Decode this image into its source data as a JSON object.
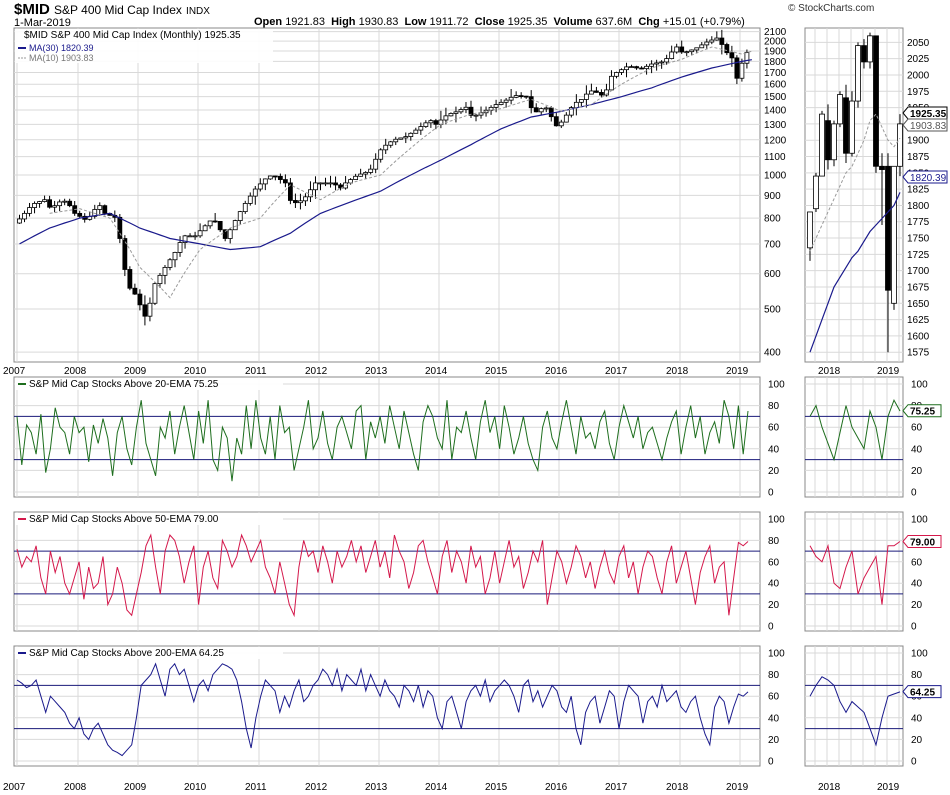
{
  "header": {
    "symbol": "$MID",
    "name": "S&P 400 Mid Cap Index",
    "exchange": "INDX",
    "date": "1-Mar-2019",
    "open_label": "Open",
    "open": "1921.83",
    "high_label": "High",
    "high": "1930.83",
    "low_label": "Low",
    "low": "1911.72",
    "close_label": "Close",
    "close": "1925.35",
    "volume_label": "Volume",
    "volume": "637.6M",
    "chg_label": "Chg",
    "chg": "+15.01 (+0.79%)",
    "brand": "© StockCharts.com"
  },
  "colors": {
    "ma30": "#1a1a8c",
    "ma10": "#9a9a9a",
    "pct20": "#1e6e1e",
    "pct50": "#d4184b",
    "pct200": "#1a1a8c",
    "hline": "#1a1a7a",
    "grid": "#d9d9d9"
  },
  "chart_data": [
    {
      "type": "candlestick",
      "legend": [
        {
          "label": "$MID S&P 400 Mid Cap Index (Monthly) 1925.35"
        },
        {
          "label": "MA(30) 1820.39"
        },
        {
          "label": "MA(10) 1903.83"
        }
      ],
      "scale": "log",
      "y_ticks": [
        400,
        500,
        600,
        700,
        800,
        900,
        1000,
        1100,
        1200,
        1300,
        1400,
        1500,
        1600,
        1700,
        1800,
        1900,
        2000,
        2100
      ],
      "x_ticks": [
        "2007",
        "2008",
        "2009",
        "2010",
        "2011",
        "2012",
        "2013",
        "2014",
        "2015",
        "2016",
        "2017",
        "2018",
        "2019"
      ],
      "price_anchors": [
        [
          2007.0,
          780
        ],
        [
          2007.1,
          800
        ],
        [
          2007.3,
          860
        ],
        [
          2007.5,
          880
        ],
        [
          2007.6,
          840
        ],
        [
          2007.8,
          880
        ],
        [
          2007.9,
          860
        ],
        [
          2008.0,
          820
        ],
        [
          2008.2,
          790
        ],
        [
          2008.4,
          860
        ],
        [
          2008.5,
          820
        ],
        [
          2008.7,
          800
        ],
        [
          2008.8,
          640
        ],
        [
          2008.9,
          560
        ],
        [
          2009.0,
          540
        ],
        [
          2009.2,
          470
        ],
        [
          2009.3,
          560
        ],
        [
          2009.5,
          620
        ],
        [
          2009.7,
          680
        ],
        [
          2009.8,
          730
        ],
        [
          2010.0,
          730
        ],
        [
          2010.3,
          800
        ],
        [
          2010.4,
          760
        ],
        [
          2010.5,
          720
        ],
        [
          2010.6,
          760
        ],
        [
          2010.8,
          850
        ],
        [
          2011.0,
          930
        ],
        [
          2011.2,
          990
        ],
        [
          2011.3,
          1000
        ],
        [
          2011.5,
          960
        ],
        [
          2011.6,
          860
        ],
        [
          2011.8,
          880
        ],
        [
          2012.0,
          960
        ],
        [
          2012.3,
          960
        ],
        [
          2012.4,
          930
        ],
        [
          2012.5,
          960
        ],
        [
          2012.7,
          1000
        ],
        [
          2012.9,
          1020
        ],
        [
          2013.1,
          1150
        ],
        [
          2013.3,
          1200
        ],
        [
          2013.5,
          1220
        ],
        [
          2013.7,
          1270
        ],
        [
          2013.9,
          1330
        ],
        [
          2014.0,
          1300
        ],
        [
          2014.2,
          1370
        ],
        [
          2014.3,
          1380
        ],
        [
          2014.5,
          1420
        ],
        [
          2014.6,
          1350
        ],
        [
          2014.8,
          1390
        ],
        [
          2015.0,
          1440
        ],
        [
          2015.2,
          1480
        ],
        [
          2015.3,
          1510
        ],
        [
          2015.5,
          1500
        ],
        [
          2015.6,
          1400
        ],
        [
          2015.7,
          1380
        ],
        [
          2015.8,
          1440
        ],
        [
          2016.0,
          1290
        ],
        [
          2016.1,
          1320
        ],
        [
          2016.3,
          1450
        ],
        [
          2016.4,
          1470
        ],
        [
          2016.5,
          1520
        ],
        [
          2016.6,
          1550
        ],
        [
          2016.8,
          1500
        ],
        [
          2016.9,
          1660
        ],
        [
          2017.0,
          1700
        ],
        [
          2017.2,
          1760
        ],
        [
          2017.4,
          1730
        ],
        [
          2017.6,
          1780
        ],
        [
          2017.8,
          1800
        ],
        [
          2017.9,
          1880
        ],
        [
          2018.0,
          1940
        ],
        [
          2018.1,
          1880
        ],
        [
          2018.3,
          1920
        ],
        [
          2018.5,
          1990
        ],
        [
          2018.7,
          2040
        ],
        [
          2018.8,
          1890
        ],
        [
          2018.9,
          1870
        ],
        [
          2019.0,
          1650
        ],
        [
          2019.1,
          1810
        ],
        [
          2019.2,
          1925
        ]
      ],
      "ma30_anchors": [
        [
          2007.0,
          700
        ],
        [
          2007.5,
          760
        ],
        [
          2008.0,
          800
        ],
        [
          2008.5,
          820
        ],
        [
          2009.0,
          760
        ],
        [
          2009.5,
          720
        ],
        [
          2010.0,
          700
        ],
        [
          2010.5,
          680
        ],
        [
          2011.0,
          690
        ],
        [
          2011.5,
          740
        ],
        [
          2012.0,
          820
        ],
        [
          2012.5,
          870
        ],
        [
          2013.0,
          920
        ],
        [
          2013.5,
          1000
        ],
        [
          2014.0,
          1080
        ],
        [
          2014.5,
          1170
        ],
        [
          2015.0,
          1270
        ],
        [
          2015.5,
          1350
        ],
        [
          2016.0,
          1390
        ],
        [
          2016.5,
          1440
        ],
        [
          2017.0,
          1500
        ],
        [
          2017.5,
          1570
        ],
        [
          2018.0,
          1660
        ],
        [
          2018.5,
          1740
        ],
        [
          2019.0,
          1800
        ],
        [
          2019.2,
          1820
        ]
      ],
      "ma10_anchors": [
        [
          2007.5,
          820
        ],
        [
          2008.0,
          840
        ],
        [
          2008.5,
          800
        ],
        [
          2009.0,
          620
        ],
        [
          2009.5,
          530
        ],
        [
          2010.0,
          680
        ],
        [
          2010.5,
          760
        ],
        [
          2011.0,
          800
        ],
        [
          2011.5,
          950
        ],
        [
          2012.0,
          880
        ],
        [
          2012.5,
          960
        ],
        [
          2013.0,
          1000
        ],
        [
          2013.5,
          1150
        ],
        [
          2014.0,
          1300
        ],
        [
          2014.5,
          1370
        ],
        [
          2015.0,
          1410
        ],
        [
          2015.5,
          1480
        ],
        [
          2016.0,
          1390
        ],
        [
          2016.5,
          1440
        ],
        [
          2017.0,
          1600
        ],
        [
          2017.5,
          1740
        ],
        [
          2018.0,
          1820
        ],
        [
          2018.5,
          1940
        ],
        [
          2019.0,
          1870
        ],
        [
          2019.2,
          1903
        ]
      ]
    },
    {
      "type": "candlestick",
      "zoom": true,
      "y_ticks": [
        1575,
        1600,
        1625,
        1650,
        1675,
        1700,
        1725,
        1750,
        1775,
        1800,
        1825,
        1850,
        1875,
        1900,
        1925,
        1950,
        1975,
        2000,
        2025,
        2050
      ],
      "x_ticks": [
        "2018",
        "2019"
      ],
      "price_labels": [
        "1925.35",
        "1903.83",
        "1820.39"
      ],
      "candles": [
        {
          "o": 1735,
          "h": 1790,
          "l": 1715,
          "c": 1790
        },
        {
          "o": 1795,
          "h": 1850,
          "l": 1790,
          "c": 1845
        },
        {
          "o": 1845,
          "h": 1945,
          "l": 1845,
          "c": 1940
        },
        {
          "o": 1930,
          "h": 1955,
          "l": 1855,
          "c": 1870
        },
        {
          "o": 1870,
          "h": 1930,
          "l": 1860,
          "c": 1925
        },
        {
          "o": 1925,
          "h": 1975,
          "l": 1920,
          "c": 1970
        },
        {
          "o": 1965,
          "h": 1985,
          "l": 1865,
          "c": 1880
        },
        {
          "o": 1880,
          "h": 1975,
          "l": 1875,
          "c": 1960
        },
        {
          "o": 1960,
          "h": 2050,
          "l": 1950,
          "c": 2045
        },
        {
          "o": 2045,
          "h": 2055,
          "l": 2010,
          "c": 2020
        },
        {
          "o": 2020,
          "h": 2065,
          "l": 2010,
          "c": 2060
        },
        {
          "o": 2060,
          "h": 2060,
          "l": 1850,
          "c": 1860
        },
        {
          "o": 1860,
          "h": 1880,
          "l": 1770,
          "c": 1855
        },
        {
          "o": 1860,
          "h": 1880,
          "l": 1575,
          "c": 1670
        },
        {
          "o": 1650,
          "h": 1860,
          "l": 1640,
          "c": 1860
        },
        {
          "o": 1860,
          "h": 1940,
          "l": 1845,
          "c": 1925
        }
      ],
      "ma10": [
        1730,
        1750,
        1770,
        1790,
        1810,
        1830,
        1850,
        1860,
        1880,
        1900,
        1930,
        1940,
        1920,
        1900,
        1890,
        1903
      ],
      "ma30": [
        1575,
        1600,
        1625,
        1650,
        1675,
        1690,
        1705,
        1720,
        1730,
        1745,
        1760,
        1770,
        1780,
        1790,
        1800,
        1820
      ]
    },
    {
      "type": "line",
      "title": "S&P Mid Cap Stocks Above 20-EMA 75.25",
      "value_label": "75.25",
      "ylim": [
        0,
        100
      ],
      "y_ticks": [
        0,
        20,
        40,
        60,
        80,
        100
      ],
      "hlines": [
        30,
        70
      ],
      "x_ticks": [
        "2007",
        "2008",
        "2009",
        "2010",
        "2011",
        "2012",
        "2013",
        "2014",
        "2015",
        "2016",
        "2017",
        "2018",
        "2019"
      ],
      "values": [
        70,
        25,
        62,
        55,
        35,
        72,
        18,
        40,
        78,
        60,
        55,
        35,
        70,
        55,
        60,
        28,
        62,
        45,
        68,
        50,
        15,
        55,
        70,
        40,
        25,
        60,
        85,
        45,
        30,
        15,
        60,
        50,
        75,
        35,
        60,
        80,
        55,
        30,
        75,
        45,
        85,
        30,
        20,
        60,
        50,
        10,
        50,
        35,
        80,
        40,
        85,
        50,
        35,
        70,
        30,
        80,
        55,
        60,
        20,
        40,
        60,
        85,
        40,
        50,
        75,
        45,
        30,
        60,
        70,
        55,
        40,
        75,
        80,
        30,
        65,
        50,
        70,
        45,
        80,
        60,
        40,
        75,
        55,
        35,
        20,
        65,
        80,
        70,
        50,
        40,
        85,
        30,
        60,
        55,
        75,
        50,
        30,
        65,
        85,
        55,
        70,
        40,
        80,
        60,
        35,
        50,
        70,
        45,
        30,
        20,
        60,
        75,
        50,
        40,
        65,
        85,
        60,
        35,
        70,
        50,
        55,
        40,
        65,
        75,
        45,
        30,
        60,
        80,
        65,
        50,
        70,
        40,
        55,
        60,
        45,
        30,
        50,
        65,
        75,
        35,
        60,
        80,
        50,
        70,
        35,
        55,
        65,
        45,
        85,
        70,
        40,
        80,
        35,
        75
      ],
      "zoom_values": [
        70,
        80,
        60,
        45,
        30,
        55,
        80,
        60,
        50,
        40,
        75,
        60,
        30,
        70,
        85,
        75
      ]
    },
    {
      "type": "line",
      "title": "S&P Mid Cap Stocks Above 50-EMA 79.00",
      "value_label": "79.00",
      "ylim": [
        0,
        100
      ],
      "y_ticks": [
        0,
        20,
        40,
        60,
        80,
        100
      ],
      "hlines": [
        30,
        70
      ],
      "x_ticks": [
        "2007",
        "2008",
        "2009",
        "2010",
        "2011",
        "2012",
        "2013",
        "2014",
        "2015",
        "2016",
        "2017",
        "2018",
        "2019"
      ],
      "values": [
        72,
        55,
        65,
        60,
        75,
        45,
        30,
        70,
        50,
        65,
        40,
        30,
        45,
        60,
        25,
        55,
        35,
        40,
        65,
        20,
        30,
        55,
        40,
        15,
        10,
        30,
        50,
        75,
        85,
        55,
        30,
        70,
        85,
        80,
        65,
        40,
        60,
        75,
        20,
        55,
        70,
        45,
        35,
        80,
        70,
        55,
        65,
        85,
        75,
        60,
        70,
        80,
        55,
        45,
        30,
        60,
        40,
        20,
        10,
        55,
        80,
        65,
        70,
        50,
        75,
        60,
        40,
        70,
        55,
        65,
        80,
        60,
        75,
        50,
        65,
        80,
        55,
        70,
        45,
        85,
        70,
        60,
        35,
        50,
        75,
        80,
        60,
        45,
        30,
        65,
        80,
        50,
        70,
        60,
        40,
        75,
        55,
        65,
        30,
        45,
        70,
        40,
        60,
        80,
        55,
        65,
        35,
        50,
        70,
        60,
        80,
        20,
        45,
        70,
        60,
        40,
        55,
        75,
        65,
        45,
        60,
        35,
        55,
        70,
        50,
        40,
        65,
        75,
        45,
        60,
        30,
        55,
        70,
        65,
        45,
        30,
        60,
        75,
        40,
        55,
        70,
        45,
        20,
        50,
        65,
        75,
        40,
        55,
        60,
        10,
        45,
        78,
        75,
        79
      ],
      "zoom_values": [
        75,
        65,
        60,
        75,
        40,
        35,
        55,
        70,
        30,
        45,
        55,
        65,
        20,
        75,
        75,
        79
      ]
    },
    {
      "type": "line",
      "title": "S&P Mid Cap Stocks Above 200-EMA 64.25",
      "value_label": "64.25",
      "ylim": [
        0,
        100
      ],
      "y_ticks": [
        0,
        20,
        40,
        60,
        80,
        100
      ],
      "hlines": [
        30,
        70
      ],
      "x_ticks": [
        "2007",
        "2008",
        "2009",
        "2010",
        "2011",
        "2012",
        "2013",
        "2014",
        "2015",
        "2016",
        "2017",
        "2018",
        "2019"
      ],
      "values": [
        75,
        72,
        68,
        70,
        75,
        60,
        45,
        60,
        55,
        50,
        45,
        35,
        30,
        40,
        25,
        20,
        30,
        35,
        25,
        15,
        10,
        8,
        5,
        10,
        15,
        40,
        70,
        75,
        80,
        90,
        75,
        60,
        85,
        90,
        80,
        85,
        70,
        55,
        70,
        75,
        65,
        80,
        85,
        90,
        88,
        85,
        75,
        55,
        30,
        12,
        40,
        60,
        75,
        70,
        65,
        45,
        60,
        50,
        65,
        75,
        55,
        60,
        70,
        75,
        85,
        80,
        70,
        85,
        65,
        80,
        75,
        70,
        85,
        65,
        80,
        70,
        60,
        75,
        65,
        60,
        50,
        70,
        65,
        55,
        70,
        50,
        65,
        60,
        40,
        30,
        55,
        60,
        45,
        30,
        55,
        65,
        70,
        60,
        75,
        55,
        65,
        70,
        75,
        70,
        60,
        45,
        70,
        75,
        55,
        65,
        50,
        60,
        70,
        65,
        50,
        45,
        60,
        30,
        15,
        45,
        55,
        60,
        35,
        50,
        65,
        60,
        30,
        55,
        70,
        65,
        60,
        35,
        55,
        60,
        50,
        70,
        55,
        60,
        65,
        50,
        45,
        55,
        60,
        40,
        25,
        15,
        50,
        60,
        55,
        35,
        50,
        62,
        60,
        64
      ],
      "zoom_values": [
        60,
        70,
        78,
        75,
        70,
        55,
        45,
        55,
        50,
        45,
        30,
        15,
        40,
        60,
        62,
        64
      ]
    }
  ]
}
